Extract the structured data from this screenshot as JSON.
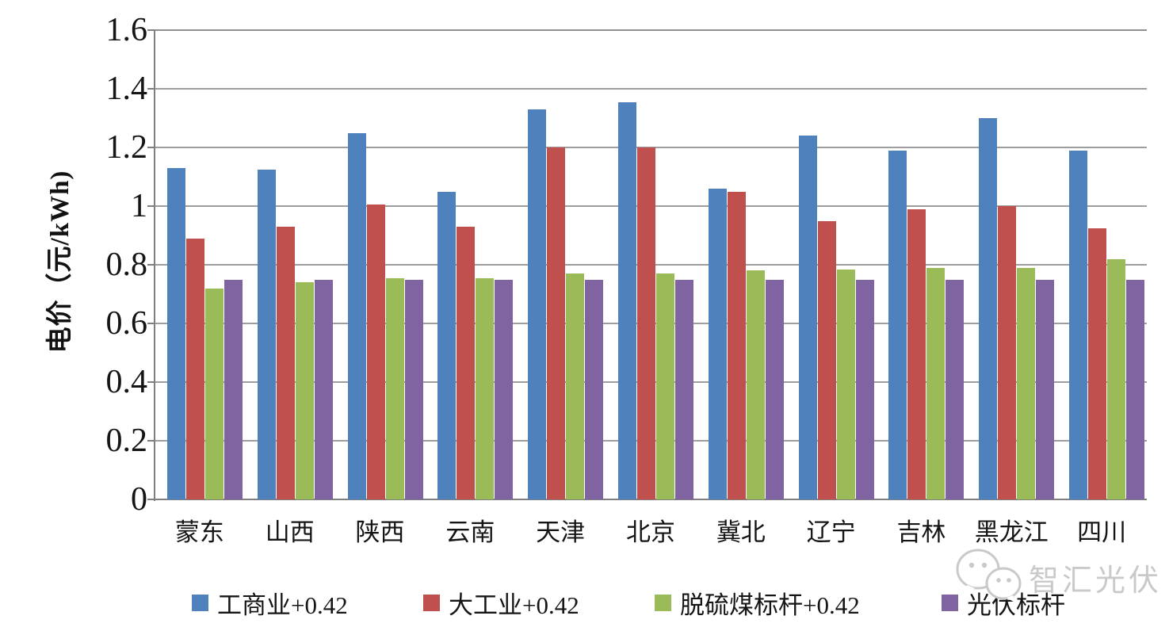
{
  "figure": {
    "background": "#ffffff",
    "watermark": {
      "text": "智汇光伏",
      "color": "#c9c9c9",
      "icon": "wechat-icon"
    }
  },
  "chart_data": {
    "type": "bar",
    "title": "",
    "xlabel": "",
    "ylabel": "电价（元/kWh)",
    "ylim": [
      0,
      1.6
    ],
    "ytick_step": 0.2,
    "ytick_labels": [
      "0",
      "0.2",
      "0.4",
      "0.6",
      "0.8",
      "1",
      "1.2",
      "1.4",
      "1.6"
    ],
    "grid": true,
    "legend_position": "bottom",
    "categories": [
      "蒙东",
      "山西",
      "陕西",
      "云南",
      "天津",
      "北京",
      "冀北",
      "辽宁",
      "吉林",
      "黑龙江",
      "四川"
    ],
    "series": [
      {
        "name": "工商业+0.42",
        "color": "#4f81bd",
        "values": [
          1.13,
          1.125,
          1.25,
          1.05,
          1.33,
          1.355,
          1.06,
          1.24,
          1.19,
          1.3,
          1.19
        ]
      },
      {
        "name": "大工业+0.42",
        "color": "#c0504d",
        "values": [
          0.89,
          0.93,
          1.005,
          0.93,
          1.2,
          1.2,
          1.05,
          0.95,
          0.99,
          1.0,
          0.925
        ]
      },
      {
        "name": "脱硫煤标杆+0.42",
        "color": "#9bbb59",
        "values": [
          0.72,
          0.74,
          0.755,
          0.755,
          0.77,
          0.77,
          0.78,
          0.785,
          0.79,
          0.79,
          0.82
        ]
      },
      {
        "name": "光伏标杆",
        "color": "#8064a2",
        "values": [
          0.75,
          0.75,
          0.75,
          0.75,
          0.75,
          0.75,
          0.75,
          0.75,
          0.75,
          0.75,
          0.75
        ]
      }
    ]
  }
}
